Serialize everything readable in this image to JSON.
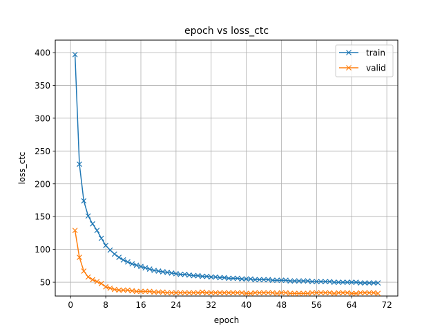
{
  "chart_data": {
    "type": "line",
    "title": "epoch vs loss_ctc",
    "xlabel": "epoch",
    "ylabel": "loss_ctc",
    "xlim": [
      -3.5,
      74.5
    ],
    "ylim": [
      29,
      419
    ],
    "xticks": [
      0,
      8,
      16,
      24,
      32,
      40,
      48,
      56,
      64,
      72
    ],
    "yticks": [
      50,
      100,
      150,
      200,
      250,
      300,
      350,
      400
    ],
    "grid": true,
    "legend_position": "top-right",
    "x": [
      1,
      2,
      3,
      4,
      5,
      6,
      7,
      8,
      9,
      10,
      11,
      12,
      13,
      14,
      15,
      16,
      17,
      18,
      19,
      20,
      21,
      22,
      23,
      24,
      25,
      26,
      27,
      28,
      29,
      30,
      31,
      32,
      33,
      34,
      35,
      36,
      37,
      38,
      39,
      40,
      41,
      42,
      43,
      44,
      45,
      46,
      47,
      48,
      49,
      50,
      51,
      52,
      53,
      54,
      55,
      56,
      57,
      58,
      59,
      60,
      61,
      62,
      63,
      64,
      65,
      66,
      67,
      68,
      69,
      70
    ],
    "series": [
      {
        "name": "train",
        "color": "#1f77b4",
        "marker": "x",
        "values": [
          397,
          230,
          174,
          151,
          139,
          129,
          117,
          106,
          99,
          93,
          88,
          84,
          81,
          78,
          76,
          74,
          72,
          70,
          68,
          67,
          66,
          65,
          64,
          63,
          62,
          62,
          61,
          60,
          60,
          59,
          59,
          58,
          58,
          57,
          57,
          56,
          56,
          56,
          55,
          55,
          55,
          54,
          54,
          54,
          54,
          53,
          53,
          53,
          53,
          52,
          52,
          52,
          52,
          52,
          51,
          51,
          51,
          51,
          51,
          50,
          50,
          50,
          50,
          50,
          50,
          49,
          49,
          49,
          49,
          49
        ]
      },
      {
        "name": "valid",
        "color": "#ff7f0e",
        "marker": "x",
        "values": [
          129,
          88,
          67,
          58,
          54,
          51,
          48,
          43,
          41,
          39,
          38,
          38,
          38,
          37,
          36,
          36,
          36,
          36,
          35,
          35,
          35,
          34,
          34,
          34,
          34,
          34,
          34,
          34,
          34,
          35,
          34,
          34,
          34,
          34,
          34,
          34,
          34,
          34,
          34,
          33,
          33,
          34,
          34,
          34,
          34,
          34,
          33,
          34,
          34,
          33,
          33,
          33,
          33,
          33,
          34,
          34,
          34,
          34,
          34,
          33,
          34,
          34,
          34,
          33,
          33,
          34,
          34,
          34,
          34,
          33
        ]
      }
    ]
  }
}
